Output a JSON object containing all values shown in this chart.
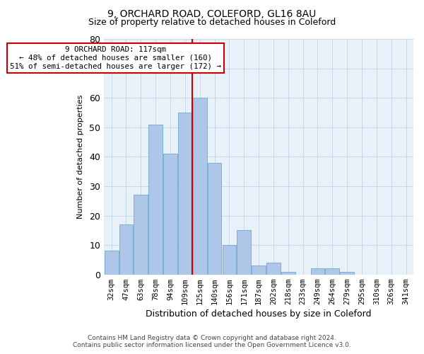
{
  "title1": "9, ORCHARD ROAD, COLEFORD, GL16 8AU",
  "title2": "Size of property relative to detached houses in Coleford",
  "xlabel": "Distribution of detached houses by size in Coleford",
  "ylabel": "Number of detached properties",
  "categories": [
    "32sqm",
    "47sqm",
    "63sqm",
    "78sqm",
    "94sqm",
    "109sqm",
    "125sqm",
    "140sqm",
    "156sqm",
    "171sqm",
    "187sqm",
    "202sqm",
    "218sqm",
    "233sqm",
    "249sqm",
    "264sqm",
    "279sqm",
    "295sqm",
    "310sqm",
    "326sqm",
    "341sqm"
  ],
  "values": [
    8,
    17,
    27,
    51,
    41,
    55,
    60,
    38,
    10,
    15,
    3,
    4,
    1,
    0,
    2,
    2,
    1,
    0,
    0,
    0,
    0
  ],
  "bar_color": "#aec6e8",
  "bar_edge_color": "#6fa8d0",
  "vline_x": 5.5,
  "vline_color": "#cc0000",
  "annotation_line1": "9 ORCHARD ROAD: 117sqm",
  "annotation_line2": "← 48% of detached houses are smaller (160)",
  "annotation_line3": "51% of semi-detached houses are larger (172) →",
  "annotation_box_facecolor": "#ffffff",
  "annotation_box_edgecolor": "#cc0000",
  "ylim": [
    0,
    80
  ],
  "yticks": [
    0,
    10,
    20,
    30,
    40,
    50,
    60,
    70,
    80
  ],
  "grid_color": "#c8d8ea",
  "bg_color": "#e8f0f8",
  "footer1": "Contains HM Land Registry data © Crown copyright and database right 2024.",
  "footer2": "Contains public sector information licensed under the Open Government Licence v3.0.",
  "title1_fontsize": 10,
  "title2_fontsize": 9,
  "xlabel_fontsize": 9,
  "ylabel_fontsize": 8,
  "tick_fontsize": 7.5,
  "footer_fontsize": 6.5
}
